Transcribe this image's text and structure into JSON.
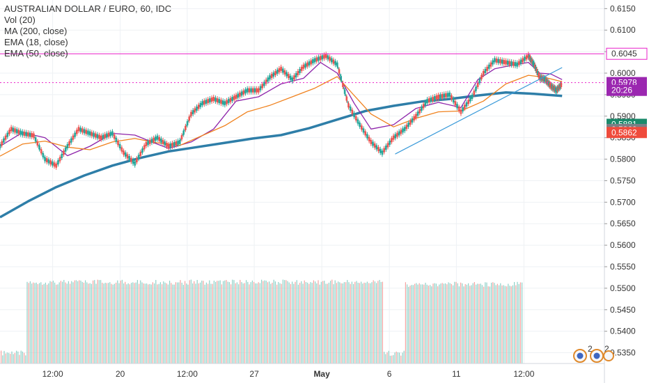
{
  "legend": {
    "title": "AUSTRALIAN DOLLAR / EURO, 60, IDC",
    "items": [
      "Vol (20)",
      "MA (200, close)",
      "EMA (18, close)",
      "EMA (50, close)"
    ]
  },
  "price_tags": [
    {
      "label": "0.6045",
      "value": 0.6045,
      "style": "outline",
      "color": "#e91ec8"
    },
    {
      "label": "0.5978",
      "value": 0.5978,
      "style": "fill",
      "color": "#9b27b0"
    },
    {
      "label": "20:26",
      "value": 0.596,
      "style": "fill",
      "color": "#9b27b0"
    },
    {
      "label": "0.5881",
      "value": 0.5881,
      "style": "fill",
      "color": "#1b8a6b"
    },
    {
      "label": "0.5869",
      "value": 0.5869,
      "style": "fill",
      "color": "#7b7f86"
    },
    {
      "label": "0.5862",
      "value": 0.5862,
      "style": "fill",
      "color": "#ef4b3c"
    }
  ],
  "footer": {
    "event_badge_count_1": "2",
    "event_badge_count_2": "2"
  },
  "chart_data": {
    "type": "line",
    "title": "AUSTRALIAN DOLLAR / EURO, 60, IDC",
    "y_axis_ticks": [
      "0.6150",
      "0.6100",
      "0.6050",
      "0.6000",
      "0.5950",
      "0.5900",
      "0.5850",
      "0.5800",
      "0.5750",
      "0.5700",
      "0.5650",
      "0.5600",
      "0.5550",
      "0.5500",
      "0.5450",
      "0.5400",
      "0.5350"
    ],
    "ylim": [
      0.5325,
      0.617
    ],
    "x_axis_ticks": [
      "12:00",
      "20",
      "12:00",
      "27",
      "May",
      "6",
      "11",
      "12:00"
    ],
    "x_tick_fractions": [
      0.099,
      0.226,
      0.352,
      0.478,
      0.605,
      0.732,
      0.858,
      0.985
    ],
    "horizontal_line": {
      "value": 0.6045,
      "color": "#e91ec8"
    },
    "dotted_line": {
      "value": 0.5978,
      "color": "#e91ec8"
    },
    "trend_line": {
      "start": [
        0.703,
        0.5812
      ],
      "end": [
        1.0,
        0.6013
      ],
      "color": "#3a9ad9"
    },
    "grid": true,
    "series": [
      {
        "name": "MA (200, close)",
        "color": "#2e7ea8",
        "x": [
          0.0,
          0.05,
          0.1,
          0.15,
          0.2,
          0.25,
          0.3,
          0.35,
          0.4,
          0.45,
          0.5,
          0.55,
          0.6,
          0.65,
          0.7,
          0.75,
          0.8,
          0.85,
          0.9,
          0.95,
          1.0
        ],
        "y": [
          0.5665,
          0.5702,
          0.5735,
          0.5762,
          0.5785,
          0.5803,
          0.5818,
          0.5828,
          0.5838,
          0.5848,
          0.5856,
          0.5872,
          0.5892,
          0.5912,
          0.5924,
          0.5934,
          0.594,
          0.5948,
          0.5955,
          0.5952,
          0.5947
        ]
      },
      {
        "name": "EMA (18, close)",
        "color": "#8e24aa",
        "x": [
          0.0,
          0.04,
          0.08,
          0.12,
          0.16,
          0.2,
          0.24,
          0.27,
          0.3,
          0.34,
          0.38,
          0.42,
          0.46,
          0.5,
          0.54,
          0.57,
          0.6,
          0.63,
          0.66,
          0.7,
          0.74,
          0.78,
          0.82,
          0.85,
          0.88,
          0.91,
          0.94,
          0.96,
          0.98,
          1.0
        ],
        "y": [
          0.583,
          0.5862,
          0.585,
          0.5808,
          0.583,
          0.586,
          0.5856,
          0.584,
          0.5825,
          0.584,
          0.587,
          0.5935,
          0.5945,
          0.5975,
          0.5988,
          0.6025,
          0.6,
          0.593,
          0.587,
          0.588,
          0.5918,
          0.5932,
          0.592,
          0.5985,
          0.601,
          0.6018,
          0.6025,
          0.6,
          0.5998,
          0.5985
        ]
      },
      {
        "name": "EMA (50, close)",
        "color": "#f0821e",
        "x": [
          0.0,
          0.04,
          0.08,
          0.12,
          0.16,
          0.2,
          0.24,
          0.28,
          0.32,
          0.36,
          0.4,
          0.44,
          0.48,
          0.52,
          0.56,
          0.6,
          0.63,
          0.66,
          0.7,
          0.74,
          0.78,
          0.82,
          0.86,
          0.9,
          0.94,
          0.97,
          1.0
        ],
        "y": [
          0.5807,
          0.5835,
          0.5842,
          0.5828,
          0.5822,
          0.584,
          0.5848,
          0.5838,
          0.5832,
          0.5855,
          0.5878,
          0.591,
          0.5925,
          0.5945,
          0.5965,
          0.5992,
          0.5948,
          0.5905,
          0.5875,
          0.5895,
          0.591,
          0.5912,
          0.5935,
          0.5975,
          0.5995,
          0.599,
          0.598
        ]
      },
      {
        "name": "Price",
        "color": "#26a69a",
        "x": [
          0.0,
          0.02,
          0.04,
          0.06,
          0.08,
          0.1,
          0.12,
          0.14,
          0.16,
          0.18,
          0.2,
          0.22,
          0.24,
          0.26,
          0.28,
          0.3,
          0.32,
          0.34,
          0.36,
          0.38,
          0.4,
          0.42,
          0.44,
          0.46,
          0.48,
          0.5,
          0.52,
          0.54,
          0.56,
          0.58,
          0.6,
          0.62,
          0.64,
          0.66,
          0.68,
          0.7,
          0.72,
          0.74,
          0.76,
          0.78,
          0.8,
          0.82,
          0.84,
          0.86,
          0.88,
          0.9,
          0.92,
          0.94,
          0.95,
          0.96,
          0.97,
          0.98,
          0.99,
          1.0
        ],
        "y": [
          0.583,
          0.587,
          0.586,
          0.5855,
          0.58,
          0.5785,
          0.583,
          0.587,
          0.586,
          0.585,
          0.586,
          0.5815,
          0.579,
          0.5835,
          0.585,
          0.583,
          0.584,
          0.5905,
          0.593,
          0.594,
          0.593,
          0.5945,
          0.596,
          0.596,
          0.599,
          0.601,
          0.5985,
          0.6015,
          0.603,
          0.604,
          0.602,
          0.5925,
          0.588,
          0.584,
          0.5815,
          0.585,
          0.587,
          0.59,
          0.5935,
          0.5945,
          0.595,
          0.591,
          0.5945,
          0.6,
          0.603,
          0.6025,
          0.602,
          0.604,
          0.602,
          0.599,
          0.5985,
          0.597,
          0.596,
          0.5975
        ]
      }
    ],
    "volume": {
      "name": "Vol (20)",
      "colors": {
        "up": "#8fd0c7",
        "down": "#f4a3a0"
      },
      "baseline_value": 0.5325,
      "segments": [
        {
          "from": 0.0,
          "to": 0.045,
          "level": 0.5355
        },
        {
          "from": 0.045,
          "to": 0.68,
          "level": 0.552
        },
        {
          "from": 0.68,
          "to": 0.72,
          "level": 0.5355
        },
        {
          "from": 0.72,
          "to": 1.0,
          "level": 0.5515
        }
      ]
    }
  }
}
